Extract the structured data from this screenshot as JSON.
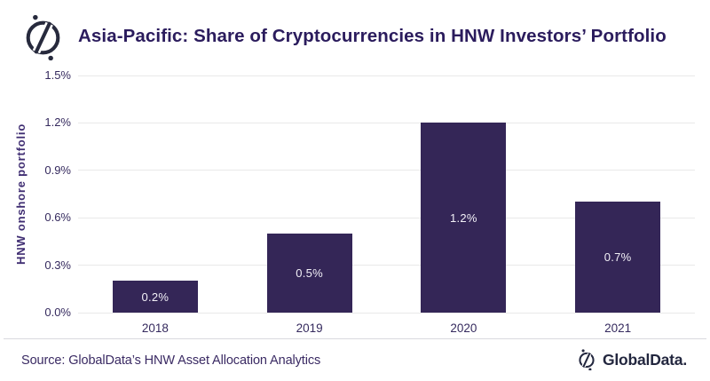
{
  "header": {
    "title": "Asia-Pacific: Share of Cryptocurrencies in HNW Investors’ Portfolio",
    "logo": "globaldata-circle-slash-logo"
  },
  "chart_data": {
    "type": "bar",
    "title": "Asia-Pacific: Share of Cryptocurrencies in HNW Investors’ Portfolio",
    "categories": [
      "2018",
      "2019",
      "2020",
      "2021"
    ],
    "values": [
      0.2,
      0.5,
      1.2,
      0.7
    ],
    "data_labels": [
      "0.2%",
      "0.5%",
      "1.2%",
      "0.7%"
    ],
    "xlabel": "",
    "ylabel": "HNW onshore portfolio",
    "ylim": [
      0,
      1.5
    ],
    "ytick_values": [
      0,
      0.3,
      0.6,
      0.9,
      1.2,
      1.5
    ],
    "ytick_labels": [
      "0.0%",
      "0.3%",
      "0.6%",
      "0.9%",
      "1.2%",
      "1.5%"
    ],
    "grid": "horizontal-only",
    "legend": "none",
    "series_name": "Share of cryptocurrencies"
  },
  "footer": {
    "source": "Source: GlobalData’s HNW Asset Allocation Analytics",
    "brand": "GlobalData."
  },
  "colors": {
    "bar": "#342657",
    "title": "#2b1c5d",
    "axis_text": "#352a5e",
    "axis_title": "#3f2d72",
    "gridline": "#e9e9e9",
    "divider": "#a3a4aa",
    "source_text": "#3a2a63",
    "brand": "#23273f",
    "bar_label": "#f2f0f7",
    "logo_ink": "#272a3d"
  }
}
